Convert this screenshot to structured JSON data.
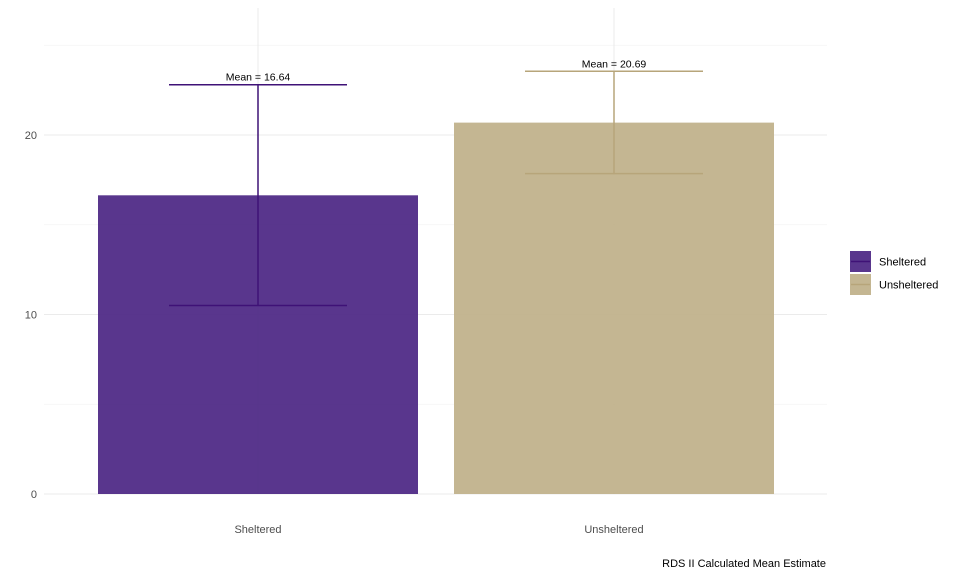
{
  "chart_data": {
    "type": "bar",
    "categories": [
      "Sheltered",
      "Unsheltered"
    ],
    "values": [
      16.64,
      20.69
    ],
    "error_bars": [
      {
        "lower": 10.5,
        "upper": 22.8
      },
      {
        "lower": 17.85,
        "upper": 23.55
      }
    ],
    "data_labels": [
      "Mean = 16.64",
      "Mean = 20.69"
    ],
    "colors": [
      "#4b2583",
      "#bfb089"
    ],
    "error_bar_colors": [
      "#3f1277",
      "#b7a57a"
    ],
    "ylim": [
      0,
      25.5
    ],
    "y_ticks": [
      0,
      10,
      20
    ],
    "y_tick_labels": [
      "0",
      "10",
      "20"
    ],
    "grid": true,
    "legend": {
      "position": "right",
      "entries": [
        "Sheltered",
        "Unsheltered"
      ]
    },
    "caption": "RDS II Calculated Mean Estimate",
    "title": "",
    "xlabel": "",
    "ylabel": ""
  }
}
